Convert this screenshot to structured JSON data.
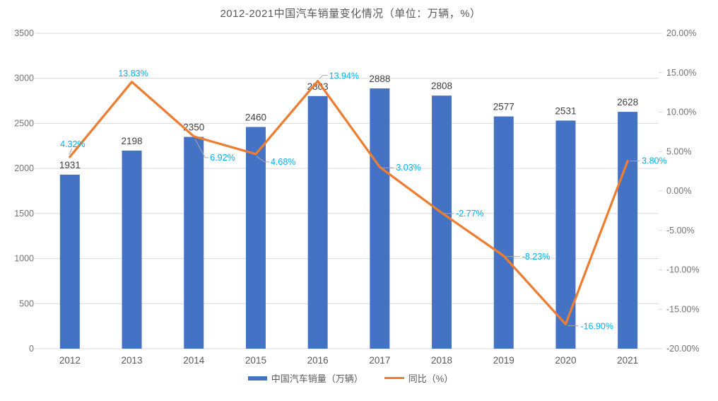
{
  "chart_data": {
    "type": "bar+line",
    "title": "2012-2021中国汽车销量变化情况（单位：万辆，%）",
    "categories": [
      "2012",
      "2013",
      "2014",
      "2015",
      "2016",
      "2017",
      "2018",
      "2019",
      "2020",
      "2021"
    ],
    "series": [
      {
        "name": "中国汽车销量（万辆）",
        "type": "bar",
        "axis": "left",
        "color": "#4472C4",
        "values": [
          1931,
          2198,
          2350,
          2460,
          2803,
          2888,
          2808,
          2577,
          2531,
          2628
        ],
        "labels": [
          "1931",
          "2198",
          "2350",
          "2460",
          "2803",
          "2888",
          "2808",
          "2577",
          "2531",
          "2628"
        ]
      },
      {
        "name": "同比（%）",
        "type": "line",
        "axis": "right",
        "color": "#ED7D31",
        "label_color": "#00B0F0",
        "values": [
          4.32,
          13.83,
          6.92,
          4.68,
          13.94,
          3.03,
          -2.77,
          -8.23,
          -16.9,
          3.8
        ],
        "labels": [
          "4.32%",
          "13.83%",
          "6.92%",
          "4.68%",
          "13.94%",
          "3.03%",
          "-2.77%",
          "-8.23%",
          "-16.90%",
          "3.80%"
        ]
      }
    ],
    "left_axis": {
      "min": 0,
      "max": 3500,
      "step": 500,
      "ticks": [
        "3500",
        "3000",
        "2500",
        "2000",
        "1500",
        "1000",
        "500",
        "0"
      ]
    },
    "right_axis": {
      "min": -20,
      "max": 20,
      "step": 5,
      "ticks": [
        "20.00%",
        "15.00%",
        "10.00%",
        "5.00%",
        "0.00%",
        "-5.00%",
        "-10.00%",
        "-15.00%",
        "-20.00%"
      ]
    },
    "grid": true,
    "legend_position": "bottom",
    "colors": {
      "bar": "#4472C4",
      "line": "#ED7D31",
      "line_value_label": "#00B0F0",
      "bar_value_label": "#3F3F3F",
      "axis_text": "#737373",
      "category_text": "#595959",
      "grid_line": "#D9D9D9",
      "leader_line": "#A6A6A6",
      "title_text": "#595959"
    }
  }
}
